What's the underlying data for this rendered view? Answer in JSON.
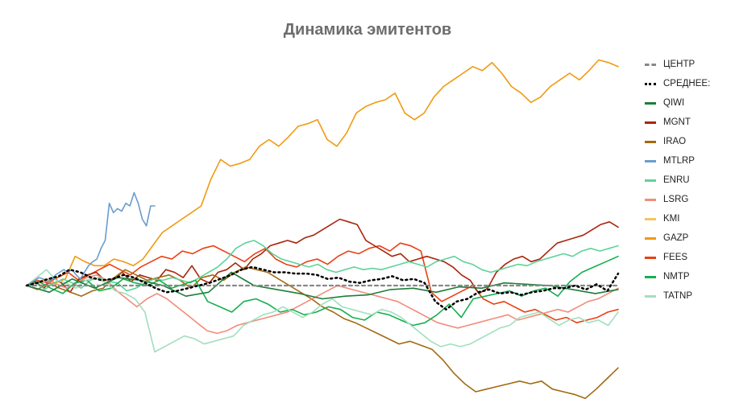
{
  "chart_data": {
    "type": "line",
    "title": "Динамика эмитентов",
    "xlabel": "",
    "ylabel": "",
    "grid": false,
    "legend_position": "right",
    "baseline_value": 0,
    "ylim": [
      -0.85,
      1.75
    ],
    "series": [
      {
        "name": "ЦЕНТР",
        "color": "#888888",
        "style": "dashed",
        "width": 2.2,
        "values": [
          0,
          0
        ]
      },
      {
        "name": "СРЕДНЕЕ:",
        "color": "#000000",
        "style": "dotted",
        "width": 2.5,
        "values": [
          0,
          0.02,
          0.05,
          0.07,
          0.12,
          0.1,
          0.06,
          0.04,
          0.05,
          0.08,
          0.06,
          0.02,
          -0.02,
          -0.05,
          -0.04,
          -0.02,
          0,
          0.02,
          0.05,
          0.08,
          0.12,
          0.14,
          0.12,
          0.1,
          0.1,
          0.09,
          0.09,
          0.08,
          0.05,
          0.06,
          0.03,
          0.02,
          0.04,
          0.05,
          0.07,
          0.04,
          0.05,
          0.02,
          -0.12,
          -0.18,
          -0.12,
          -0.1,
          -0.05,
          -0.03,
          -0.06,
          -0.05,
          -0.07,
          -0.05,
          -0.04,
          -0.02,
          -0.02,
          0,
          -0.03,
          0.01,
          -0.04,
          0.09
        ]
      },
      {
        "name": "QIWI",
        "color": "#1e7d3a",
        "style": "solid",
        "width": 1.6,
        "values": [
          0,
          -0.05,
          0.05,
          -0.02,
          0.06,
          0.04,
          0,
          -0.08,
          -0.05,
          0.1,
          0,
          -0.03,
          -0.06,
          -0.1,
          -0.08,
          -0.07,
          -0.03,
          -0.02,
          -0.05,
          -0.01,
          -0.02,
          0.02,
          0.01,
          0,
          -0.03,
          -0.06,
          -0.03
        ]
      },
      {
        "name": "MGNT",
        "color": "#a8260c",
        "style": "solid",
        "width": 1.6,
        "values": [
          0,
          0.03,
          -0.02,
          0.06,
          0.02,
          -0.05,
          0.05,
          0.08,
          0.1,
          0.04,
          0.05,
          0.1,
          0.03,
          0.08,
          0.06,
          0.04,
          0.12,
          0.1,
          0.06,
          0.15,
          0.05,
          0.02,
          0.1,
          0.12,
          0.17,
          0.12,
          0.2,
          0.24,
          0.3,
          0.32,
          0.34,
          0.32,
          0.36,
          0.38,
          0.42,
          0.46,
          0.5,
          0.48,
          0.46,
          0.34,
          0.3,
          0.26,
          0.22,
          0.24,
          0.18,
          0.2,
          0.22,
          0.2,
          0.18,
          0.14,
          0.08,
          0.04,
          -0.06,
          -0.02,
          0.1,
          0.16,
          0.2,
          0.22,
          0.18,
          0.2,
          0.26,
          0.32,
          0.34,
          0.36,
          0.38,
          0.42,
          0.46,
          0.48,
          0.44
        ]
      },
      {
        "name": "IRAO",
        "color": "#a26a10",
        "style": "solid",
        "width": 1.6,
        "values": [
          0,
          -0.03,
          0.02,
          -0.02,
          -0.05,
          -0.08,
          -0.04,
          -0.02,
          0.06,
          0.12,
          0.08,
          0.04,
          0.06,
          0.08,
          0.04,
          -0.02,
          0.06,
          0.08,
          0.04,
          0.1,
          0.14,
          0.12,
          0.1,
          0.05,
          0,
          -0.05,
          -0.1,
          -0.16,
          -0.2,
          -0.25,
          -0.28,
          -0.32,
          -0.36,
          -0.4,
          -0.44,
          -0.42,
          -0.45,
          -0.48,
          -0.56,
          -0.66,
          -0.74,
          -0.8,
          -0.78,
          -0.76,
          -0.74,
          -0.72,
          -0.74,
          -0.72,
          -0.78,
          -0.8,
          -0.82,
          -0.85,
          -0.78,
          -0.7,
          -0.62
        ]
      },
      {
        "name": "MTLRP",
        "color": "#6b9ccd",
        "style": "solid",
        "width": 1.6,
        "values": [
          0,
          0.02,
          0.04,
          0.06,
          0.05,
          0.03,
          0.04,
          0.08,
          0.1,
          0.12,
          0.1,
          0.12,
          0.08,
          0.05,
          0.1,
          0.15,
          0.18,
          0.2,
          0.28,
          0.34,
          0.62,
          0.55,
          0.58,
          0.56,
          0.62,
          0.6,
          0.7,
          0.62,
          0.5,
          0.45,
          0.6,
          0.6
        ]
      },
      {
        "name": "ENRU",
        "color": "#5fd39a",
        "style": "solid",
        "width": 1.6,
        "values": [
          0,
          0.02,
          -0.03,
          0.02,
          0.05,
          0.02,
          -0.02,
          0.04,
          0.06,
          0.03,
          0.02,
          -0.04,
          -0.02,
          0.02,
          0.05,
          0.04,
          0.06,
          0.04,
          0.02,
          0.06,
          0.1,
          0.14,
          0.2,
          0.28,
          0.32,
          0.34,
          0.3,
          0.24,
          0.2,
          0.18,
          0.16,
          0.14,
          0.16,
          0.12,
          0.1,
          0.12,
          0.14,
          0.12,
          0.13,
          0.12,
          0.14,
          0.16,
          0.18,
          0.16,
          0.14,
          0.18,
          0.2,
          0.22,
          0.18,
          0.16,
          0.12,
          0.1,
          0.12,
          0.14,
          0.16,
          0.15,
          0.18,
          0.2,
          0.22,
          0.24,
          0.22,
          0.26,
          0.28,
          0.26,
          0.28,
          0.3
        ]
      },
      {
        "name": "LSRG",
        "color": "#f28c7a",
        "style": "solid",
        "width": 1.6,
        "values": [
          0,
          0.02,
          0.03,
          0.01,
          -0.02,
          0.02,
          0.06,
          0.08,
          0.04,
          -0.04,
          -0.1,
          -0.16,
          -0.1,
          -0.06,
          -0.1,
          -0.16,
          -0.22,
          -0.28,
          -0.34,
          -0.36,
          -0.34,
          -0.3,
          -0.28,
          -0.26,
          -0.24,
          -0.22,
          -0.2,
          -0.16,
          -0.12,
          -0.08,
          -0.04,
          0,
          -0.02,
          -0.04,
          -0.06,
          -0.08,
          -0.1,
          -0.12,
          -0.16,
          -0.2,
          -0.24,
          -0.28,
          -0.3,
          -0.32,
          -0.3,
          -0.28,
          -0.26,
          -0.24,
          -0.22,
          -0.26,
          -0.24,
          -0.22,
          -0.2,
          -0.18,
          -0.2,
          -0.16,
          -0.12,
          -0.1,
          -0.06,
          -0.02
        ]
      },
      {
        "name": "KMI",
        "color": "#f6c462",
        "style": "solid",
        "width": 1.6,
        "values": []
      },
      {
        "name": "GAZP",
        "color": "#f09a13",
        "style": "solid",
        "width": 1.6,
        "values": [
          0,
          0.02,
          0.05,
          0.02,
          0.05,
          0.22,
          0.18,
          0.15,
          0.15,
          0.2,
          0.18,
          0.15,
          0.2,
          0.3,
          0.4,
          0.45,
          0.5,
          0.55,
          0.6,
          0.8,
          0.95,
          0.9,
          0.92,
          0.95,
          1.05,
          1.1,
          1.05,
          1.12,
          1.2,
          1.22,
          1.25,
          1.1,
          1.05,
          1.15,
          1.3,
          1.35,
          1.38,
          1.4,
          1.45,
          1.3,
          1.25,
          1.3,
          1.42,
          1.5,
          1.55,
          1.6,
          1.65,
          1.62,
          1.68,
          1.6,
          1.5,
          1.45,
          1.38,
          1.42,
          1.5,
          1.55,
          1.6,
          1.55,
          1.62,
          1.7,
          1.68,
          1.65
        ]
      },
      {
        "name": "FEES",
        "color": "#ea3f12",
        "style": "solid",
        "width": 1.6,
        "values": [
          0,
          0.04,
          0.02,
          0.06,
          0.1,
          0.04,
          0.08,
          0.12,
          0.16,
          0.12,
          0.08,
          0.14,
          0.18,
          0.22,
          0.2,
          0.26,
          0.24,
          0.28,
          0.3,
          0.26,
          0.22,
          0.18,
          0.24,
          0.28,
          0.2,
          0.16,
          0.14,
          0.18,
          0.2,
          0.16,
          0.22,
          0.26,
          0.24,
          0.28,
          0.3,
          0.26,
          0.32,
          0.3,
          0.26,
          -0.05,
          -0.12,
          -0.08,
          -0.04,
          0,
          -0.1,
          -0.14,
          -0.12,
          -0.16,
          -0.2,
          -0.18,
          -0.22,
          -0.26,
          -0.24,
          -0.28,
          -0.26,
          -0.24,
          -0.2,
          -0.18
        ]
      },
      {
        "name": "NMTP",
        "color": "#14b04f",
        "style": "solid",
        "width": 1.6,
        "values": [
          0,
          0.03,
          -0.02,
          -0.06,
          0.02,
          0.04,
          -0.04,
          -0.02,
          0.05,
          0.02,
          0,
          0.04,
          -0.02,
          0.01,
          0.04,
          -0.12,
          -0.16,
          -0.2,
          -0.12,
          -0.1,
          -0.14,
          -0.2,
          -0.18,
          -0.22,
          -0.2,
          -0.16,
          -0.18,
          -0.24,
          -0.26,
          -0.2,
          -0.22,
          -0.26,
          -0.3,
          -0.28,
          -0.22,
          -0.14,
          -0.24,
          -0.1,
          -0.08,
          -0.06,
          -0.04,
          -0.08,
          -0.04,
          -0.02,
          -0.08,
          0.03,
          0.1,
          0.14,
          0.18,
          0.22
        ]
      },
      {
        "name": "TATNP",
        "color": "#a1dfbe",
        "style": "solid",
        "width": 1.6,
        "values": [
          0,
          0.06,
          0.12,
          0.04,
          0.02,
          -0.02,
          0.04,
          0.06,
          0.02,
          -0.04,
          -0.06,
          -0.1,
          -0.2,
          -0.5,
          -0.46,
          -0.42,
          -0.38,
          -0.4,
          -0.44,
          -0.42,
          -0.4,
          -0.38,
          -0.3,
          -0.26,
          -0.22,
          -0.2,
          -0.16,
          -0.2,
          -0.24,
          -0.2,
          -0.14,
          -0.1,
          -0.16,
          -0.18,
          -0.2,
          -0.22,
          -0.18,
          -0.2,
          -0.24,
          -0.3,
          -0.36,
          -0.42,
          -0.46,
          -0.44,
          -0.46,
          -0.44,
          -0.4,
          -0.36,
          -0.32,
          -0.3,
          -0.24,
          -0.22,
          -0.2,
          -0.25,
          -0.3,
          -0.26,
          -0.24,
          -0.28,
          -0.26,
          -0.3,
          -0.2
        ]
      }
    ]
  }
}
